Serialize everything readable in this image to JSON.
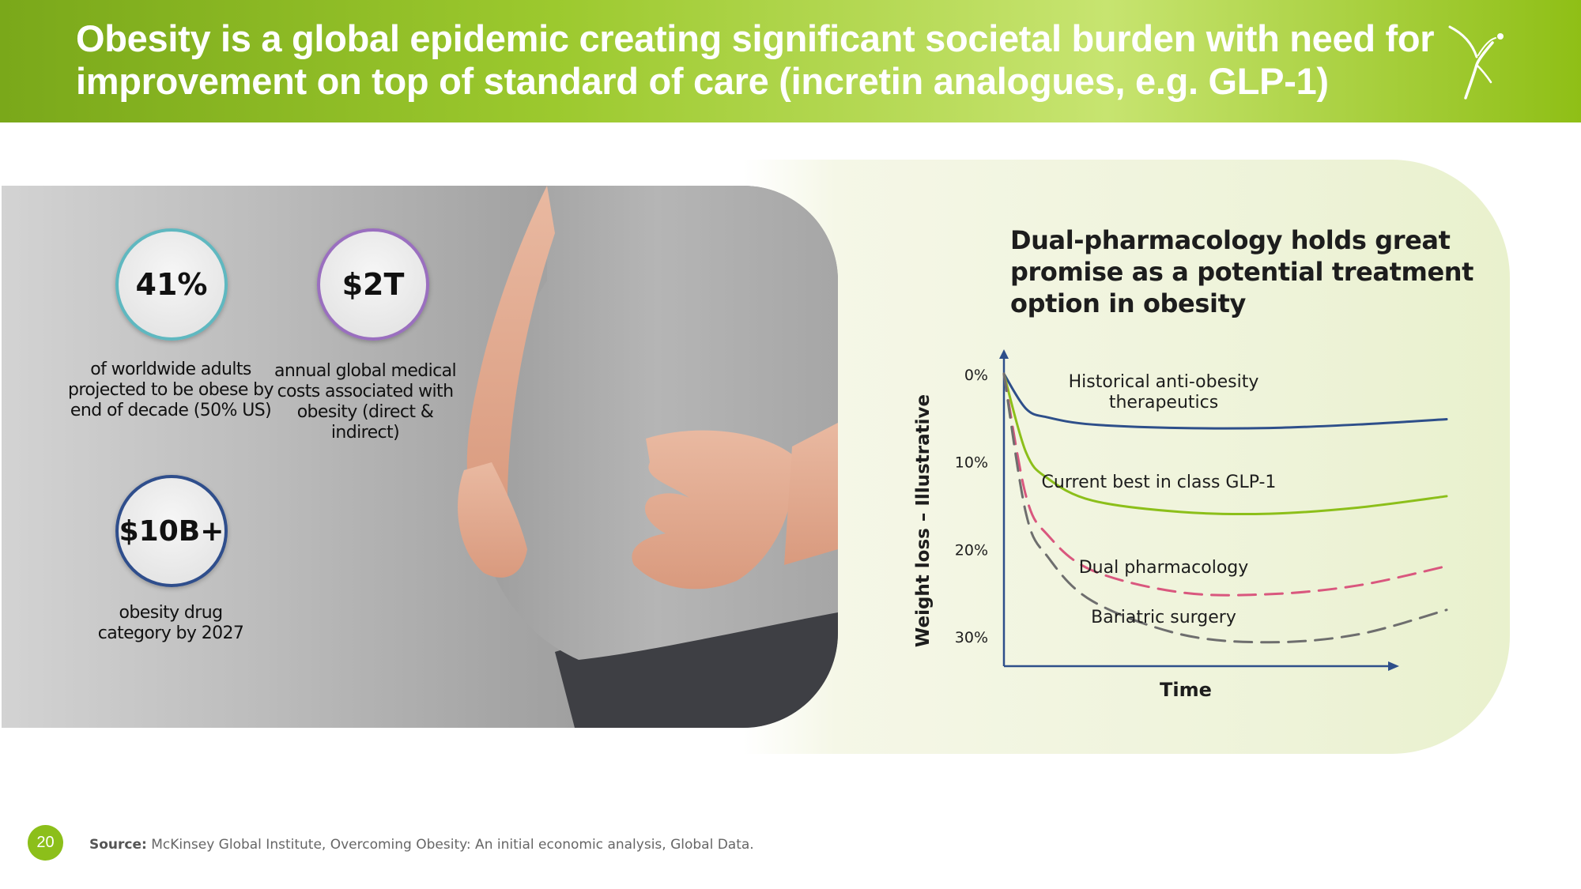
{
  "header": {
    "title": "Obesity is a global epidemic creating significant societal burden with need for improvement on top of standard of care (incretin analogues, e.g. GLP-1)"
  },
  "stats": [
    {
      "value": "41%",
      "description": "of worldwide adults projected to be obese by end of decade (50% US)",
      "ring_color": "#5fb8c0"
    },
    {
      "value": "$2T",
      "description": "annual global medical costs associated with obesity (direct & indirect)",
      "ring_color": "#9a6fbf"
    },
    {
      "value": "$10B+",
      "description": "obesity drug category by 2027",
      "ring_color": "#2f4e8c"
    }
  ],
  "chart_data": {
    "type": "line",
    "title": "Dual-pharmacology holds great promise as a potential treatment option in obesity",
    "xlabel": "Time",
    "ylabel": "Weight loss – Illustrative",
    "y_ticks": [
      "0%",
      "10%",
      "20%",
      "30%"
    ],
    "ylim": [
      0,
      30
    ],
    "x": [
      0,
      0.05,
      0.1,
      0.2,
      0.4,
      0.6,
      0.8,
      1.0
    ],
    "series": [
      {
        "name": "Historical anti-obesity therapeutics",
        "color": "#2e4f8a",
        "style": "solid",
        "values": [
          0,
          4,
          5,
          5.8,
          6.2,
          6.2,
          5.8,
          5.2
        ]
      },
      {
        "name": "Current best in class GLP-1",
        "color": "#8cbf1a",
        "style": "solid",
        "values": [
          0,
          9,
          12,
          14.5,
          15.8,
          16,
          15.3,
          14
        ]
      },
      {
        "name": "Dual pharmacology",
        "color": "#d9577e",
        "style": "dashed",
        "values": [
          0,
          14,
          18.5,
          22.5,
          25,
          25.2,
          24.2,
          22
        ]
      },
      {
        "name": "Bariatric surgery",
        "color": "#6e6e6e",
        "style": "dashed",
        "values": [
          0,
          16,
          21,
          26,
          29.8,
          30.7,
          29.8,
          27
        ]
      }
    ],
    "grid": false,
    "legend": "inline labels"
  },
  "footer": {
    "page_number": "20",
    "source_label": "Source:",
    "source_text": "McKinsey Global Institute, Overcoming Obesity: An initial economic analysis, Global Data."
  }
}
